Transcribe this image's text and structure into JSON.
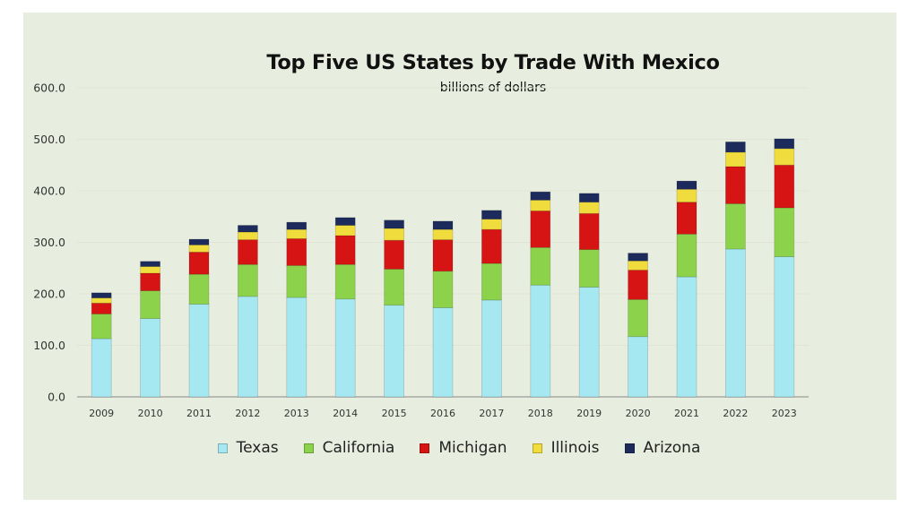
{
  "chart_data": {
    "type": "bar",
    "stacked": true,
    "title": "Top Five US States by Trade With Mexico",
    "subtitle": "billions of dollars",
    "xlabel": "",
    "ylabel": "",
    "ylim": [
      0,
      600
    ],
    "yticks": [
      "0.0",
      "100.0",
      "200.0",
      "300.0",
      "400.0",
      "500.0",
      "600.0"
    ],
    "grid": true,
    "legend_position": "bottom",
    "categories": [
      "2009",
      "2010",
      "2011",
      "2012",
      "2013",
      "2014",
      "2015",
      "2016",
      "2017",
      "2018",
      "2019",
      "2020",
      "2021",
      "2022",
      "2023"
    ],
    "series": [
      {
        "name": "Texas",
        "color": "#a6e8f2",
        "values": [
          113,
          152,
          180,
          195,
          193,
          190,
          178,
          173,
          188,
          217,
          213,
          117,
          233,
          287,
          272
        ]
      },
      {
        "name": "California",
        "color": "#8cd24a",
        "values": [
          48,
          54,
          58,
          62,
          62,
          67,
          70,
          71,
          71,
          73,
          73,
          72,
          83,
          88,
          95
        ]
      },
      {
        "name": "Michigan",
        "color": "#d61414",
        "values": [
          21,
          34,
          43,
          48,
          52,
          56,
          56,
          61,
          66,
          71,
          70,
          57,
          62,
          72,
          83
        ]
      },
      {
        "name": "Illinois",
        "color": "#f0dc3c",
        "values": [
          10,
          13,
          14,
          15,
          18,
          20,
          23,
          20,
          20,
          21,
          22,
          18,
          25,
          28,
          32
        ]
      },
      {
        "name": "Arizona",
        "color": "#1c2b5c",
        "values": [
          10,
          10,
          11,
          13,
          14,
          15,
          16,
          16,
          17,
          16,
          17,
          15,
          16,
          20,
          19
        ]
      }
    ]
  }
}
